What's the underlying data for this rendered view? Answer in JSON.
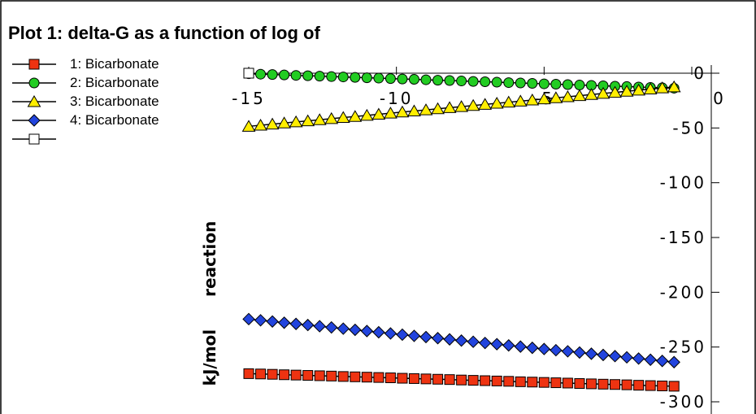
{
  "chart_data": {
    "type": "line",
    "title": "Plot 1: delta-G as a function of log of",
    "ylabel": [
      "kJ/mol",
      "reaction"
    ],
    "xlabel": "",
    "xlim": [
      -15,
      0
    ],
    "ylim": [
      -300,
      0
    ],
    "x_ticks": [
      -15,
      -10,
      -5,
      0
    ],
    "y_ticks": [
      0,
      -50,
      -100,
      -150,
      -200,
      -250,
      -300
    ],
    "x_tick_labels": [
      "-15",
      "-10",
      "-5",
      "0"
    ],
    "y_tick_labels": [
      "0",
      "-50",
      "-100",
      "-150",
      "-200",
      "-250",
      "-300"
    ],
    "legend_position": "left",
    "series": [
      {
        "name": "1: Bicarbonate",
        "marker": "square",
        "color": "#ee3311",
        "x": [
          -15,
          -14.6,
          -14.2,
          -13.8,
          -13.4,
          -13,
          -12.6,
          -12.2,
          -11.8,
          -11.4,
          -11,
          -10.6,
          -10.2,
          -9.8,
          -9.4,
          -9,
          -8.6,
          -8.2,
          -7.8,
          -7.4,
          -7,
          -6.6,
          -6.2,
          -5.8,
          -5.4,
          -5,
          -4.6,
          -4.2,
          -3.8,
          -3.4,
          -3,
          -2.6,
          -2.2,
          -1.8,
          -1.4,
          -1,
          -0.6
        ],
        "values": [
          -274.3,
          -274.6,
          -274.9,
          -275.3,
          -275.6,
          -275.9,
          -276.2,
          -276.5,
          -276.9,
          -277.2,
          -277.5,
          -277.8,
          -278.1,
          -278.5,
          -278.8,
          -279.1,
          -279.4,
          -279.7,
          -280.1,
          -280.4,
          -280.7,
          -281,
          -281.3,
          -281.7,
          -282,
          -282.3,
          -282.6,
          -282.9,
          -283.3,
          -283.6,
          -283.9,
          -284.2,
          -284.5,
          -284.9,
          -285.2,
          -285.5,
          -285.8
        ]
      },
      {
        "name": "2: Bicarbonate",
        "marker": "circle",
        "color": "#22cc22",
        "x": [
          -15,
          -14.6,
          -14.2,
          -13.8,
          -13.4,
          -13,
          -12.6,
          -12.2,
          -11.8,
          -11.4,
          -11,
          -10.6,
          -10.2,
          -9.8,
          -9.4,
          -9,
          -8.6,
          -8.2,
          -7.8,
          -7.4,
          -7,
          -6.6,
          -6.2,
          -5.8,
          -5.4,
          -5,
          -4.6,
          -4.2,
          -3.8,
          -3.4,
          -3,
          -2.6,
          -2.2,
          -1.8,
          -1.4,
          -1,
          -0.6
        ],
        "values": [
          -0.5,
          -0.9,
          -1.2,
          -1.6,
          -2,
          -2.3,
          -2.7,
          -3.1,
          -3.4,
          -3.8,
          -4.2,
          -4.5,
          -4.9,
          -5.3,
          -5.6,
          -6,
          -6.4,
          -6.7,
          -7.1,
          -7.5,
          -7.8,
          -8.2,
          -8.6,
          -8.9,
          -9.3,
          -9.7,
          -10,
          -10.4,
          -10.8,
          -11.1,
          -11.5,
          -11.9,
          -12.2,
          -12.6,
          -13,
          -13.3,
          -13.7
        ]
      },
      {
        "name": "3: Bicarbonate",
        "marker": "triangle",
        "color": "#ffee00",
        "x": [
          -15,
          -14.6,
          -14.2,
          -13.8,
          -13.4,
          -13,
          -12.6,
          -12.2,
          -11.8,
          -11.4,
          -11,
          -10.6,
          -10.2,
          -9.8,
          -9.4,
          -9,
          -8.6,
          -8.2,
          -7.8,
          -7.4,
          -7,
          -6.6,
          -6.2,
          -5.8,
          -5.4,
          -5,
          -4.6,
          -4.2,
          -3.8,
          -3.4,
          -3,
          -2.6,
          -2.2,
          -1.8,
          -1.4,
          -1,
          -0.6
        ],
        "values": [
          -48.5,
          -47.5,
          -46.5,
          -45.5,
          -44.5,
          -43.5,
          -42.5,
          -41.5,
          -40.5,
          -39.5,
          -38.5,
          -37.5,
          -36.5,
          -35.5,
          -34.5,
          -33.5,
          -32.5,
          -31.5,
          -30.5,
          -29.5,
          -28.5,
          -27.5,
          -26.5,
          -25.5,
          -24.5,
          -23.5,
          -22.5,
          -21.5,
          -20.5,
          -19.5,
          -18.5,
          -17.5,
          -16.5,
          -15.5,
          -14.5,
          -13.5,
          -12.5
        ]
      },
      {
        "name": "4: Bicarbonate",
        "marker": "diamond",
        "color": "#2244dd",
        "x": [
          -15,
          -14.6,
          -14.2,
          -13.8,
          -13.4,
          -13,
          -12.6,
          -12.2,
          -11.8,
          -11.4,
          -11,
          -10.6,
          -10.2,
          -9.8,
          -9.4,
          -9,
          -8.6,
          -8.2,
          -7.8,
          -7.4,
          -7,
          -6.6,
          -6.2,
          -5.8,
          -5.4,
          -5,
          -4.6,
          -4.2,
          -3.8,
          -3.4,
          -3,
          -2.6,
          -2.2,
          -1.8,
          -1.4,
          -1,
          -0.6
        ],
        "values": [
          -224.5,
          -225.6,
          -226.7,
          -227.8,
          -228.9,
          -229.9,
          -231,
          -232.1,
          -233.2,
          -234.3,
          -235.4,
          -236.5,
          -237.6,
          -238.7,
          -239.8,
          -240.9,
          -241.9,
          -243,
          -244.1,
          -245.2,
          -246.3,
          -247.4,
          -248.5,
          -249.6,
          -250.7,
          -251.8,
          -252.9,
          -253.9,
          -255,
          -256.1,
          -257.2,
          -258.3,
          -259.4,
          -260.5,
          -261.6,
          -262.7,
          -263.8
        ]
      },
      {
        "name": "",
        "marker": "open-square",
        "color": "#ffffff",
        "x": [
          -15
        ],
        "values": [
          0
        ]
      }
    ]
  }
}
